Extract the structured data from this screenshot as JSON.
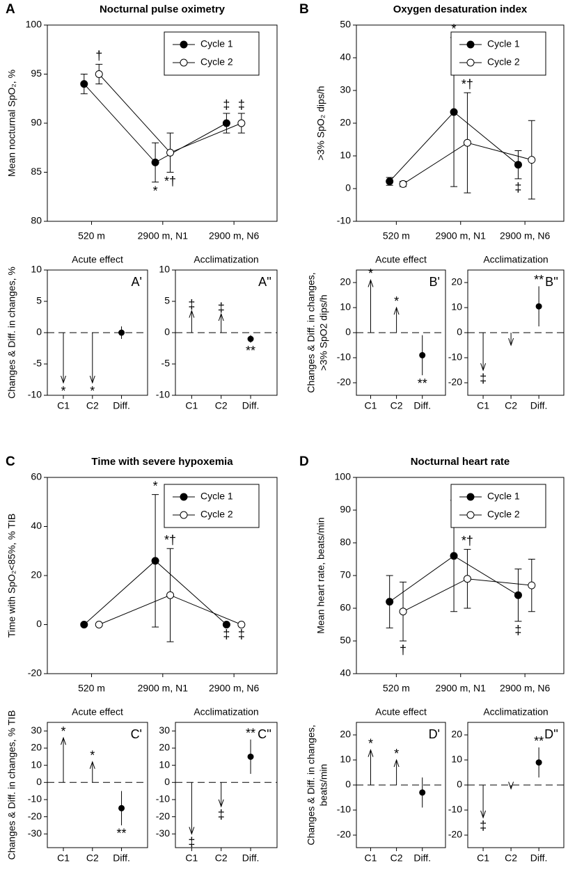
{
  "chart_data": [
    {
      "type": "line",
      "panel": "A",
      "title": "Nocturnal pulse oximetry",
      "ylabel": "Mean nocturnal SpO₂, %",
      "categories": [
        "520 m",
        "2900 m, N1",
        "2900 m, N6"
      ],
      "ylim": [
        80,
        100
      ],
      "yticks": [
        80,
        85,
        90,
        95,
        100
      ],
      "legend": "upper right",
      "series": [
        {
          "name": "Cycle 1",
          "color": "#000000",
          "fill": "#000000",
          "values": [
            94,
            86,
            90
          ],
          "errors": [
            1,
            2,
            1
          ],
          "labels": [
            null,
            "*",
            "‡"
          ]
        },
        {
          "name": "Cycle 2",
          "color": "#000000",
          "fill": "#ffffff",
          "values": [
            95,
            87,
            90
          ],
          "errors": [
            1,
            2,
            1
          ],
          "labels": [
            "†",
            "*†",
            "‡"
          ]
        }
      ]
    },
    {
      "type": "change",
      "panel": "A'",
      "title": "Acute effect",
      "ylabel": [
        "Changes & Diff. in changes, %"
      ],
      "categories": [
        "C1",
        "C2",
        "Diff."
      ],
      "ylim": [
        -10,
        10
      ],
      "yticks": [
        -10,
        -5,
        0,
        5,
        10
      ],
      "values": [
        -8,
        -8,
        0
      ],
      "errors": [
        null,
        null,
        1
      ],
      "labels": [
        "*",
        "*",
        null
      ]
    },
    {
      "type": "change",
      "panel": "A''",
      "title": "Acclimatization",
      "categories": [
        "C1",
        "C2",
        "Diff."
      ],
      "ylim": [
        -10,
        10
      ],
      "yticks": [
        -10,
        -5,
        0,
        5,
        10
      ],
      "values": [
        3.5,
        3,
        -1
      ],
      "errors": [
        null,
        null,
        0.6
      ],
      "labels": [
        "‡",
        "‡",
        "**"
      ]
    },
    {
      "type": "line",
      "panel": "B",
      "title": "Oxygen desaturation index",
      "ylabel": ">3% SpO₂ dips/h",
      "categories": [
        "520 m",
        "2900 m, N1",
        "2900 m, N6"
      ],
      "ylim": [
        -10,
        50
      ],
      "yticks": [
        -10,
        0,
        10,
        20,
        30,
        40,
        50
      ],
      "legend": "upper right",
      "series": [
        {
          "name": "Cycle 1",
          "color": "#000000",
          "fill": "#000000",
          "values": [
            2.2,
            23.4,
            7.3
          ],
          "errors": [
            1.2,
            22.8,
            4.3
          ],
          "labels": [
            null,
            "*",
            "‡"
          ]
        },
        {
          "name": "Cycle 2",
          "color": "#000000",
          "fill": "#ffffff",
          "values": [
            1.4,
            14,
            8.8
          ],
          "errors": [
            0.8,
            15.3,
            12
          ],
          "labels": [
            null,
            "*†",
            null
          ]
        }
      ]
    },
    {
      "type": "change",
      "panel": "B'",
      "title": "Acute effect",
      "ylabel": [
        "Changes & Diff. in changes,",
        ">3% SpO2 dips/h"
      ],
      "categories": [
        "C1",
        "C2",
        "Diff."
      ],
      "ylim": [
        -25,
        25
      ],
      "yticks": [
        -20,
        -10,
        0,
        10,
        20
      ],
      "values": [
        21,
        10,
        -9
      ],
      "errors": [
        null,
        null,
        8
      ],
      "labels": [
        "*",
        "*",
        "**"
      ]
    },
    {
      "type": "change",
      "panel": "B''",
      "title": "Acclimatization",
      "categories": [
        "C1",
        "C2",
        "Diff."
      ],
      "ylim": [
        -25,
        25
      ],
      "yticks": [
        -20,
        -10,
        0,
        10,
        20
      ],
      "values": [
        -15,
        -5,
        10.5
      ],
      "errors": [
        null,
        null,
        8
      ],
      "labels": [
        "‡",
        null,
        "**"
      ]
    },
    {
      "type": "line",
      "panel": "C",
      "title": "Time with severe hypoxemia",
      "ylabel": "Time with SpO₂<85%, % TIB",
      "categories": [
        "520 m",
        "2900 m, N1",
        "2900 m, N6"
      ],
      "ylim": [
        -20,
        60
      ],
      "yticks": [
        -20,
        0,
        20,
        40,
        60
      ],
      "legend": "upper right",
      "series": [
        {
          "name": "Cycle 1",
          "color": "#000000",
          "fill": "#000000",
          "values": [
            0,
            26,
            0
          ],
          "errors": [
            0.5,
            27,
            0.3
          ],
          "labels": [
            null,
            "*",
            "‡"
          ]
        },
        {
          "name": "Cycle 2",
          "color": "#000000",
          "fill": "#ffffff",
          "values": [
            0,
            12,
            0
          ],
          "errors": [
            0.3,
            19,
            0.3
          ],
          "labels": [
            null,
            "*†",
            "‡"
          ]
        }
      ]
    },
    {
      "type": "change",
      "panel": "C'",
      "title": "Acute effect",
      "ylabel": [
        "Changes & Diff. in changes, % TIB"
      ],
      "categories": [
        "C1",
        "C2",
        "Diff."
      ],
      "ylim": [
        -38,
        35
      ],
      "yticks": [
        -30,
        -20,
        -10,
        0,
        10,
        20,
        30
      ],
      "values": [
        26,
        12,
        -15
      ],
      "errors": [
        null,
        null,
        10
      ],
      "labels": [
        "*",
        "*",
        "**"
      ]
    },
    {
      "type": "change",
      "panel": "C''",
      "title": "Acclimatization",
      "categories": [
        "C1",
        "C2",
        "Diff."
      ],
      "ylim": [
        -38,
        35
      ],
      "yticks": [
        -30,
        -20,
        -10,
        0,
        10,
        20,
        30
      ],
      "values": [
        -30,
        -14,
        15
      ],
      "errors": [
        null,
        null,
        10
      ],
      "labels": [
        "‡",
        "‡",
        "**"
      ]
    },
    {
      "type": "line",
      "panel": "D",
      "title": "Nocturnal heart rate",
      "ylabel": "Mean heart rate, beats/min",
      "categories": [
        "520 m",
        "2900 m, N1",
        "2900 m, N6"
      ],
      "ylim": [
        40,
        100
      ],
      "yticks": [
        40,
        50,
        60,
        70,
        80,
        90,
        100
      ],
      "legend": "upper right",
      "series": [
        {
          "name": "Cycle 1",
          "color": "#000000",
          "fill": "#000000",
          "values": [
            62,
            76,
            64
          ],
          "errors": [
            8,
            17,
            8
          ],
          "labels": [
            null,
            "*",
            "‡"
          ]
        },
        {
          "name": "Cycle 2",
          "color": "#000000",
          "fill": "#ffffff",
          "values": [
            59,
            69,
            67
          ],
          "errors": [
            9,
            9,
            8
          ],
          "labels": [
            "†",
            "*†",
            null
          ]
        }
      ]
    },
    {
      "type": "change",
      "panel": "D'",
      "title": "Acute effect",
      "ylabel": [
        "Changes & Diff. in changes,",
        "beats/min"
      ],
      "categories": [
        "C1",
        "C2",
        "Diff."
      ],
      "ylim": [
        -25,
        25
      ],
      "yticks": [
        -20,
        -10,
        0,
        10,
        20
      ],
      "values": [
        14,
        10,
        -3
      ],
      "errors": [
        null,
        null,
        6
      ],
      "labels": [
        "*",
        "*",
        null
      ]
    },
    {
      "type": "change",
      "panel": "D''",
      "title": "Acclimatization",
      "categories": [
        "C1",
        "C2",
        "Diff."
      ],
      "ylim": [
        -25,
        25
      ],
      "yticks": [
        -20,
        -10,
        0,
        10,
        20
      ],
      "values": [
        -13,
        -1.5,
        9
      ],
      "errors": [
        null,
        null,
        6
      ],
      "labels": [
        "‡",
        null,
        "**"
      ]
    }
  ]
}
